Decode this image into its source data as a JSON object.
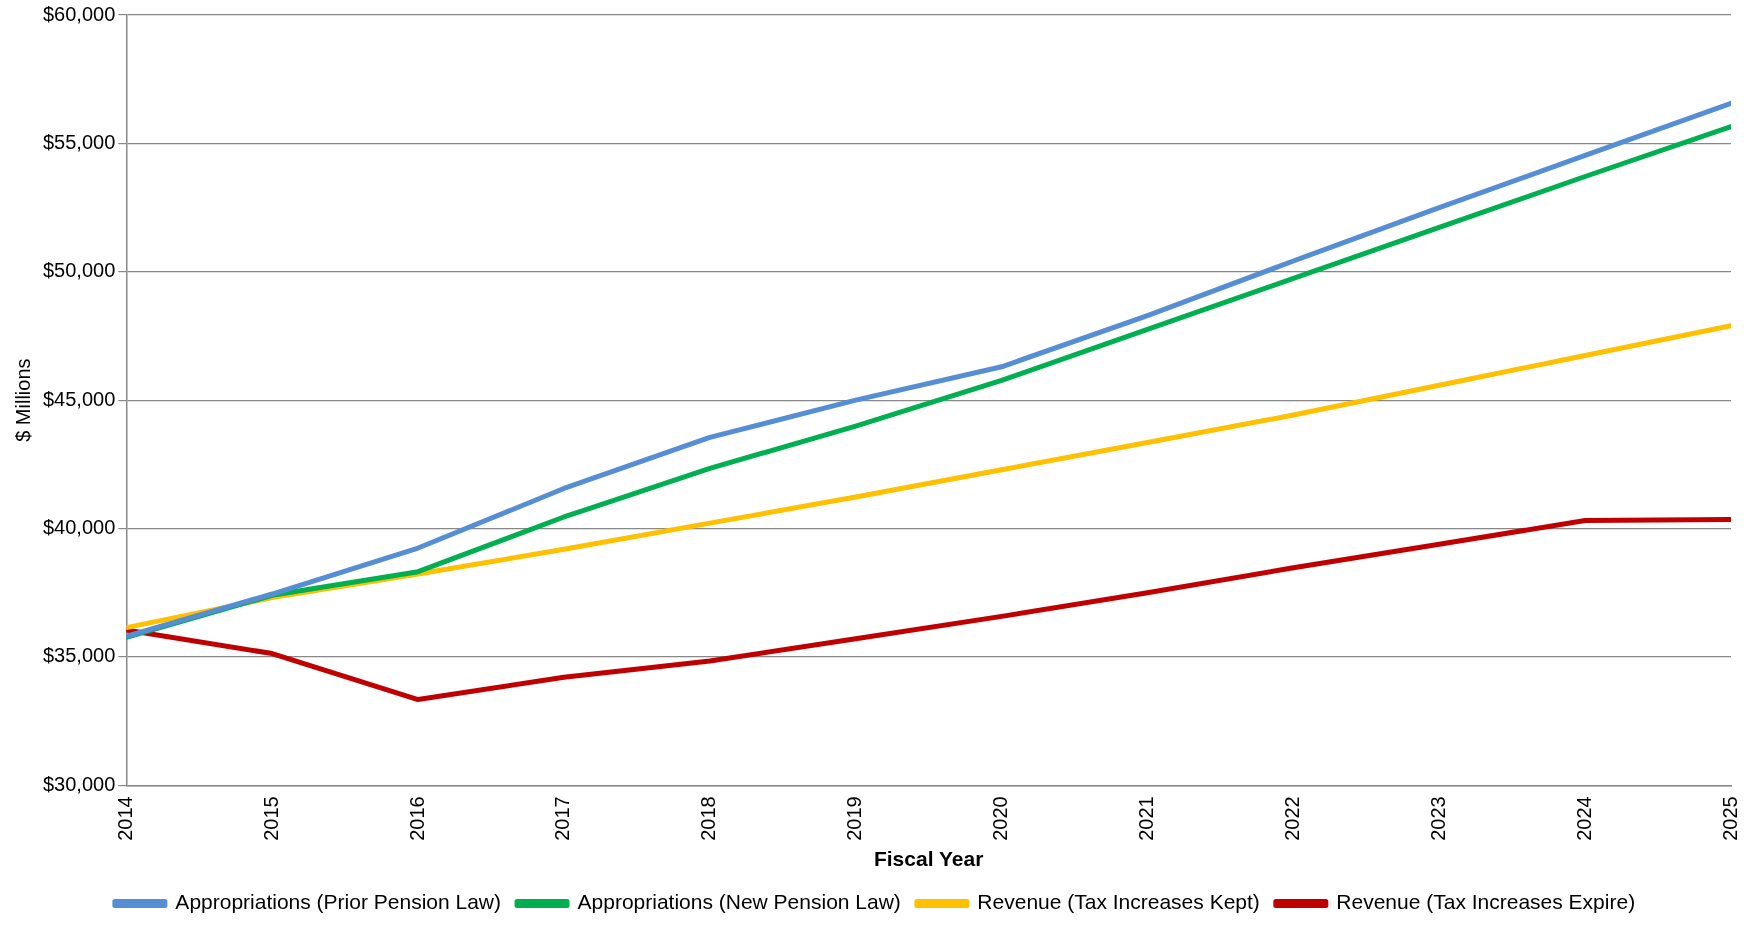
{
  "chart_data": {
    "type": "line",
    "xlabel": "Fiscal Year",
    "ylabel": "$ Millions",
    "x": [
      2014,
      2015,
      2016,
      2017,
      2018,
      2019,
      2020,
      2021,
      2022,
      2023,
      2024,
      2025
    ],
    "xlim": [
      2014,
      2025
    ],
    "xticks": [
      2014,
      2015,
      2016,
      2017,
      2018,
      2019,
      2020,
      2021,
      2022,
      2023,
      2024,
      2025
    ],
    "ylim": [
      30000,
      60000
    ],
    "yticks": [
      {
        "value": 30000,
        "label": "$30,000"
      },
      {
        "value": 35000,
        "label": "$35,000"
      },
      {
        "value": 40000,
        "label": "$40,000"
      },
      {
        "value": 45000,
        "label": "$45,000"
      },
      {
        "value": 50000,
        "label": "$50,000"
      },
      {
        "value": 55000,
        "label": "$55,000"
      },
      {
        "value": 60000,
        "label": "$60,000"
      }
    ],
    "grid": "y",
    "legend": "bottom",
    "marker": "none",
    "line_style": "solid",
    "series": [
      {
        "name": "Appropriations (Prior Pension Law)",
        "color": "#558ed5",
        "values": [
          35800,
          37450,
          39240,
          41560,
          43550,
          45000,
          46300,
          48290,
          50420,
          52500,
          54530,
          56560
        ]
      },
      {
        "name": "Appropriations (New Pension Law)",
        "color": "#00b050",
        "values": [
          35760,
          37400,
          38320,
          40450,
          42340,
          43990,
          45770,
          47760,
          49740,
          51730,
          53710,
          55650
        ]
      },
      {
        "name": "Revenue (Tax Increases Kept)",
        "color": "#ffc000",
        "values": [
          36140,
          37310,
          38230,
          39190,
          40210,
          41230,
          42290,
          43350,
          44420,
          45580,
          46740,
          47900
        ]
      },
      {
        "name": "Revenue (Tax Increases Expire)",
        "color": "#c00000",
        "values": [
          36050,
          35130,
          33340,
          34210,
          34840,
          35710,
          36580,
          37500,
          38470,
          39390,
          40310,
          40350
        ]
      }
    ]
  }
}
